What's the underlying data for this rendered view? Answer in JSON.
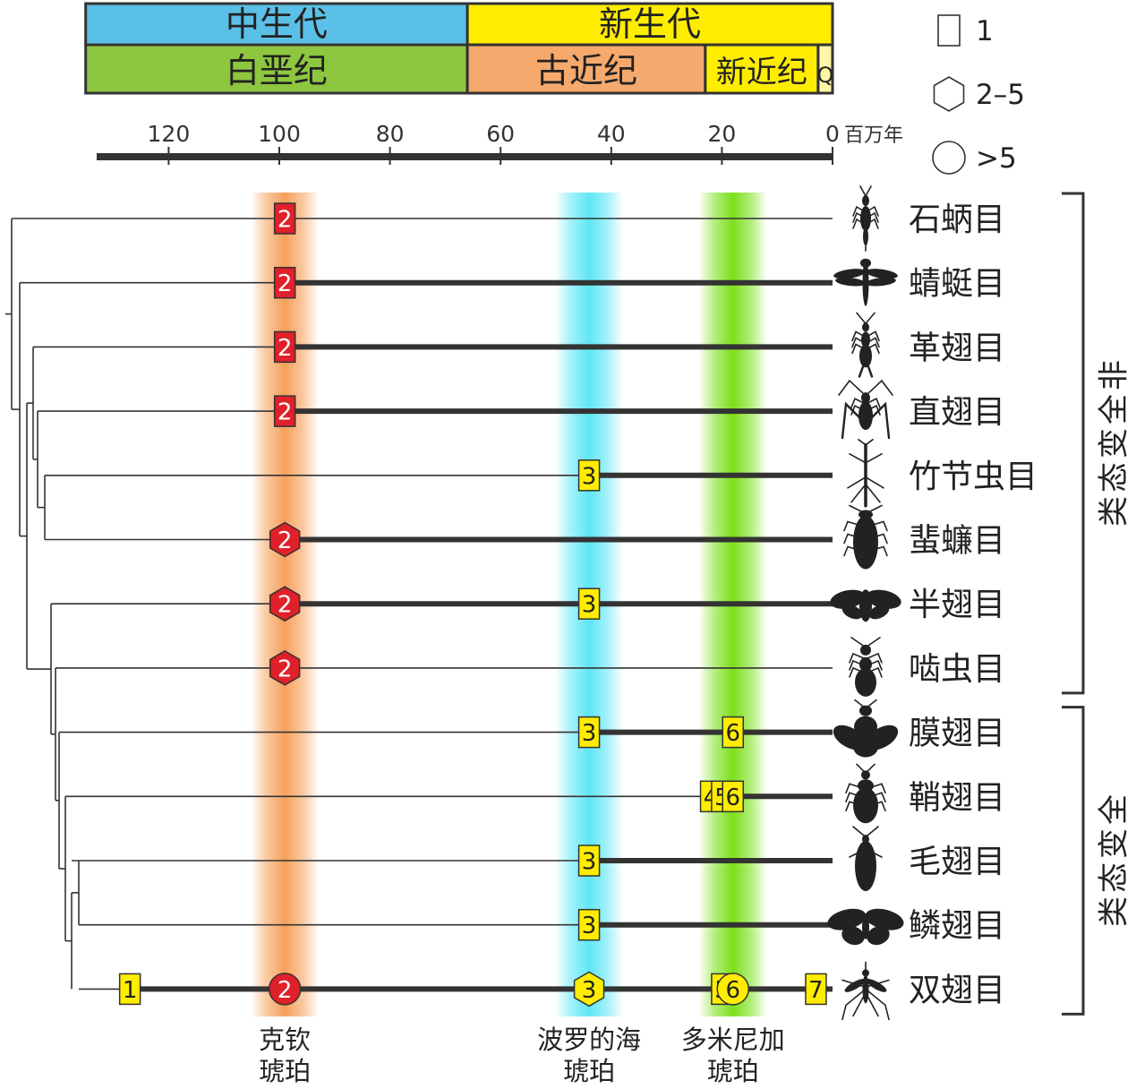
{
  "timescale": {
    "eras": [
      {
        "label": "中生代",
        "from": 135,
        "to": 66,
        "color": "#5bc0e8"
      },
      {
        "label": "新生代",
        "from": 66,
        "to": 0,
        "color": "#ffed00"
      }
    ],
    "periods": [
      {
        "label": "白垩纪",
        "from": 135,
        "to": 66,
        "color": "#8dc63f"
      },
      {
        "label": "古近纪",
        "from": 66,
        "to": 23,
        "color": "#f6a96c"
      },
      {
        "label": "新近纪",
        "from": 23,
        "to": 2.6,
        "color": "#ffed00"
      },
      {
        "label": "Q",
        "from": 2.6,
        "to": 0,
        "color": "#fff7a8"
      }
    ],
    "ticks": [
      120,
      100,
      80,
      60,
      40,
      20,
      0
    ],
    "unit": "百万年"
  },
  "legend": [
    {
      "shape": "rect",
      "label": "1"
    },
    {
      "shape": "hexagon",
      "label": "2–5"
    },
    {
      "shape": "circle",
      "label": ">5"
    }
  ],
  "amber_deposits": [
    {
      "name_lines": [
        "克钦",
        "琥珀"
      ],
      "age": 99,
      "color": "#f6a05a"
    },
    {
      "name_lines": [
        "波罗的海",
        "琥珀"
      ],
      "age": 44,
      "color": "#5fe6f5"
    },
    {
      "name_lines": [
        "多米尼加",
        "琥珀"
      ],
      "age": 18,
      "color": "#7be01a"
    }
  ],
  "orders": [
    {
      "name": "石蛃目",
      "line_start": null,
      "markers": [
        {
          "label": "2",
          "age": 99,
          "shape": "rect",
          "color": "#e0202a"
        }
      ]
    },
    {
      "name": "蜻蜓目",
      "line_start": 99,
      "markers": [
        {
          "label": "2",
          "age": 99,
          "shape": "rect",
          "color": "#e0202a"
        }
      ]
    },
    {
      "name": "革翅目",
      "line_start": 99,
      "markers": [
        {
          "label": "2",
          "age": 99,
          "shape": "rect",
          "color": "#e0202a"
        }
      ]
    },
    {
      "name": "直翅目",
      "line_start": 99,
      "markers": [
        {
          "label": "2",
          "age": 99,
          "shape": "rect",
          "color": "#e0202a"
        }
      ]
    },
    {
      "name": "竹节虫目",
      "line_start": 44,
      "markers": [
        {
          "label": "3",
          "age": 44,
          "shape": "rect",
          "color": "#ffed00"
        }
      ]
    },
    {
      "name": "蜚蠊目",
      "line_start": 99,
      "markers": [
        {
          "label": "2",
          "age": 99,
          "shape": "hexagon",
          "color": "#e0202a"
        }
      ]
    },
    {
      "name": "半翅目",
      "line_start": 99,
      "markers": [
        {
          "label": "2",
          "age": 99,
          "shape": "hexagon",
          "color": "#e0202a"
        },
        {
          "label": "3",
          "age": 44,
          "shape": "rect",
          "color": "#ffed00"
        }
      ]
    },
    {
      "name": "啮虫目",
      "line_start": null,
      "markers": [
        {
          "label": "2",
          "age": 99,
          "shape": "hexagon",
          "color": "#e0202a"
        }
      ]
    },
    {
      "name": "膜翅目",
      "line_start": 44,
      "markers": [
        {
          "label": "3",
          "age": 44,
          "shape": "rect",
          "color": "#ffed00"
        },
        {
          "label": "6",
          "age": 18,
          "shape": "rect",
          "color": "#ffed00"
        }
      ]
    },
    {
      "name": "鞘翅目",
      "line_start": 22,
      "markers": [
        {
          "label": "4",
          "age": 22,
          "shape": "rect",
          "color": "#ffed00"
        },
        {
          "label": "5",
          "age": 20,
          "shape": "rect",
          "color": "#ffed00"
        },
        {
          "label": "6",
          "age": 18,
          "shape": "rect",
          "color": "#ffed00"
        }
      ]
    },
    {
      "name": "毛翅目",
      "line_start": 44,
      "markers": [
        {
          "label": "3",
          "age": 44,
          "shape": "rect",
          "color": "#ffed00"
        }
      ]
    },
    {
      "name": "鳞翅目",
      "line_start": 44,
      "markers": [
        {
          "label": "3",
          "age": 44,
          "shape": "rect",
          "color": "#ffed00"
        }
      ]
    },
    {
      "name": "双翅目",
      "line_start": 127,
      "markers": [
        {
          "label": "1",
          "age": 127,
          "shape": "rect",
          "color": "#ffed00"
        },
        {
          "label": "2",
          "age": 99,
          "shape": "circle",
          "color": "#e0202a"
        },
        {
          "label": "3",
          "age": 44,
          "shape": "hexagon",
          "color": "#ffed00"
        },
        {
          "label": "5",
          "age": 20,
          "shape": "rect",
          "color": "#ffed00"
        },
        {
          "label": "6",
          "age": 18,
          "shape": "circle",
          "color": "#ffed00"
        },
        {
          "label": "7",
          "age": 3,
          "shape": "rect",
          "color": "#ffed00"
        }
      ]
    }
  ],
  "groups": [
    {
      "label": "非全变态类",
      "from": 0,
      "to": 7
    },
    {
      "label": "全变态类",
      "from": 8,
      "to": 12
    }
  ]
}
